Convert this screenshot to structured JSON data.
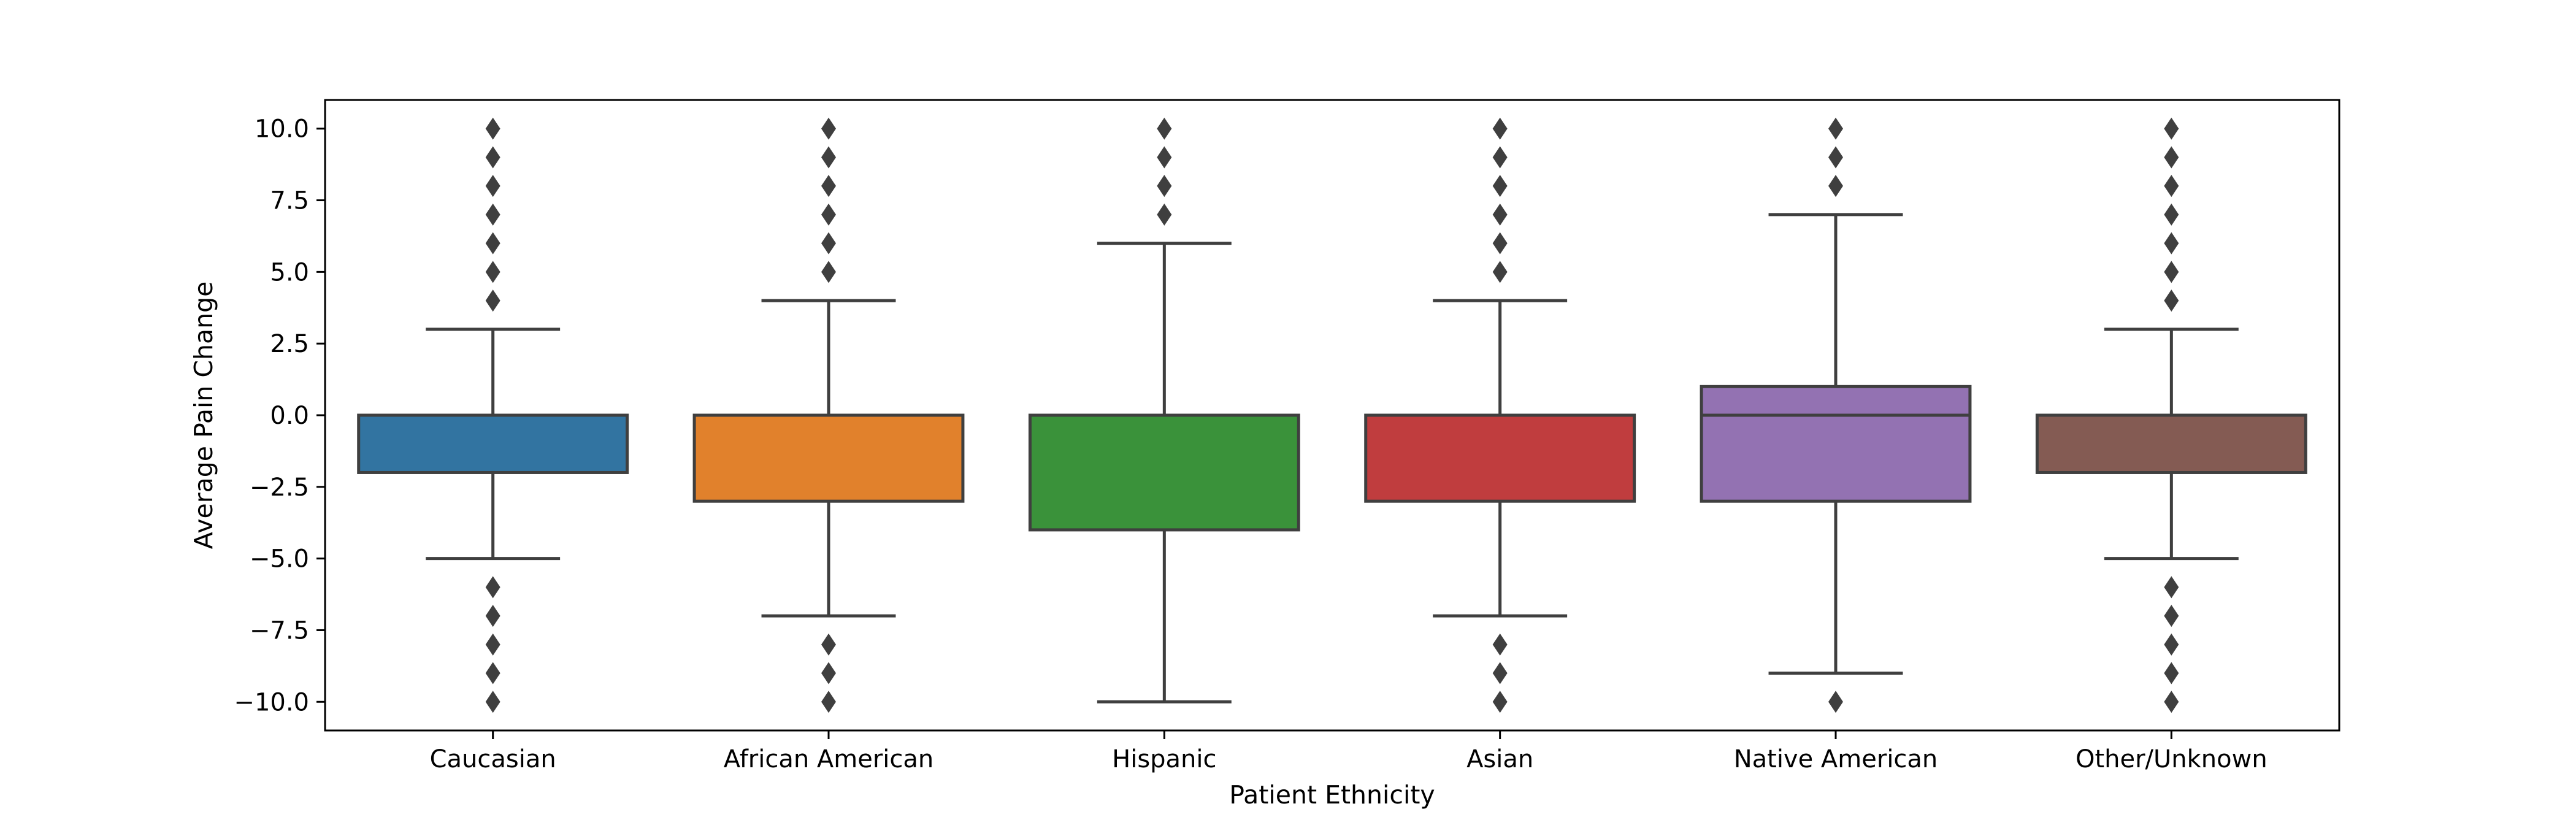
{
  "chart_data": {
    "type": "box",
    "xlabel": "Patient Ethnicity",
    "ylabel": "Average Pain Change",
    "ylim": [
      -11,
      11
    ],
    "y_ticks": [
      10.0,
      7.5,
      5.0,
      2.5,
      0.0,
      -2.5,
      -5.0,
      -7.5,
      -10.0
    ],
    "y_tick_labels": [
      "10.0",
      "7.5",
      "5.0",
      "2.5",
      "0.0",
      "−2.5",
      "−5.0",
      "−7.5",
      "−10.0"
    ],
    "grid": false,
    "legend": "none",
    "categories": [
      "Caucasian",
      "African American",
      "Hispanic",
      "Asian",
      "Native American",
      "Other/Unknown"
    ],
    "boxes": [
      {
        "category": "Caucasian",
        "color": "#3274a1",
        "whisker_low": -5,
        "q1": -2,
        "median": 0,
        "q3": 0,
        "whisker_high": 3,
        "outliers": [
          4,
          5,
          6,
          7,
          8,
          9,
          10,
          -6,
          -7,
          -8,
          -9,
          -10
        ]
      },
      {
        "category": "African American",
        "color": "#e1812c",
        "whisker_low": -7,
        "q1": -3,
        "median": 0,
        "q3": 0,
        "whisker_high": 4,
        "outliers": [
          5,
          6,
          7,
          8,
          9,
          10,
          -8,
          -9,
          -10
        ]
      },
      {
        "category": "Hispanic",
        "color": "#3a923a",
        "whisker_low": -10,
        "q1": -4,
        "median": 0,
        "q3": 0,
        "whisker_high": 6,
        "outliers": [
          7,
          8,
          9,
          10
        ]
      },
      {
        "category": "Asian",
        "color": "#c03d3e",
        "whisker_low": -7,
        "q1": -3,
        "median": 0,
        "q3": 0,
        "whisker_high": 4,
        "outliers": [
          5,
          6,
          7,
          8,
          9,
          10,
          -8,
          -9,
          -10
        ]
      },
      {
        "category": "Native American",
        "color": "#9372b2",
        "whisker_low": -9,
        "q1": -3,
        "median": 0,
        "q3": 1,
        "whisker_high": 7,
        "outliers": [
          8,
          9,
          10,
          -10
        ]
      },
      {
        "category": "Other/Unknown",
        "color": "#845b53",
        "whisker_low": -5,
        "q1": -2,
        "median": 0,
        "q3": 0,
        "whisker_high": 3,
        "outliers": [
          4,
          5,
          6,
          7,
          8,
          9,
          10,
          -6,
          -7,
          -8,
          -9,
          -10
        ]
      }
    ],
    "line_color": "#3f3f3f"
  }
}
